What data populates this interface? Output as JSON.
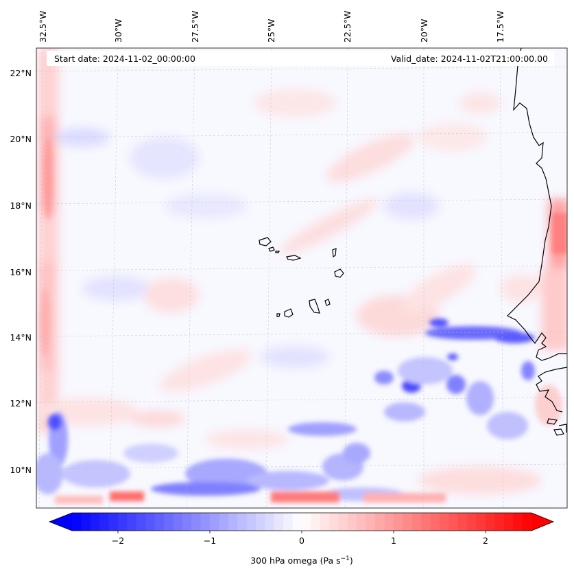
{
  "header": {
    "start_date": "Start date: 2024-11-02_00:00:00",
    "valid_date": "Valid_date: 2024-11-02T21:00:00.00"
  },
  "map": {
    "lon_labels": [
      "32.5°W",
      "30°W",
      "27.5°W",
      "25°W",
      "22.5°W",
      "20°W",
      "17.5°W"
    ],
    "lat_labels": [
      "22°N",
      "20°N",
      "18°N",
      "16°N",
      "14°N",
      "12°N",
      "10°N"
    ],
    "variable": "300 hPa omega"
  },
  "colorbar": {
    "ticks": [
      "−2",
      "−1",
      "0",
      "1",
      "2"
    ],
    "tick_values": [
      -2,
      -1,
      0,
      1,
      2
    ],
    "range": [
      -2.5,
      2.5
    ],
    "label_main": "300 hPa omega (Pa s",
    "label_sup": "−1",
    "label_end": ")",
    "colors": {
      "negative": "#0000ff",
      "zero": "#ffffff",
      "positive": "#ff0000"
    }
  }
}
